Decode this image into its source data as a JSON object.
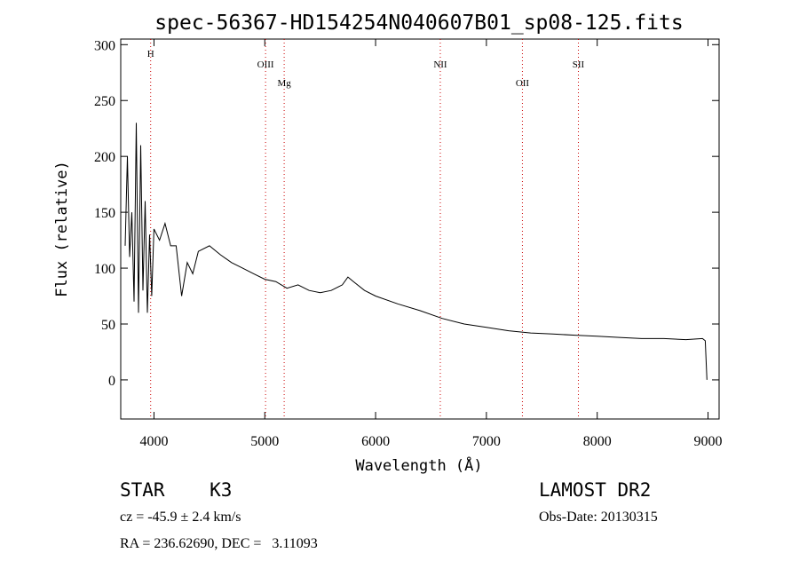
{
  "chart_data": {
    "type": "line",
    "title": "spec-56367-HD154254N040607B01_sp08-125.fits",
    "xlabel": "Wavelength (Å)",
    "ylabel": "Flux (relative)",
    "xlim": [
      3700,
      9100
    ],
    "ylim": [
      -35,
      305
    ],
    "xticks": [
      4000,
      5000,
      6000,
      7000,
      8000,
      9000
    ],
    "yticks": [
      0,
      50,
      100,
      150,
      200,
      250,
      300
    ],
    "series": [
      {
        "x": [
          3740,
          3760,
          3780,
          3800,
          3820,
          3840,
          3860,
          3880,
          3900,
          3920,
          3940,
          3960,
          3980,
          4000,
          4050,
          4100,
          4150,
          4200,
          4250,
          4300,
          4350,
          4400,
          4500,
          4600,
          4700,
          4800,
          4900,
          5000,
          5100,
          5200,
          5300,
          5400,
          5500,
          5600,
          5700,
          5750,
          5800,
          5900,
          6000,
          6200,
          6400,
          6600,
          6800,
          7000,
          7200,
          7400,
          7600,
          7800,
          8000,
          8200,
          8400,
          8600,
          8800,
          8950,
          8975,
          8990
        ],
        "y": [
          120,
          200,
          110,
          150,
          70,
          230,
          60,
          210,
          80,
          160,
          60,
          130,
          75,
          135,
          125,
          140,
          120,
          120,
          75,
          105,
          95,
          115,
          120,
          112,
          105,
          100,
          95,
          90,
          88,
          82,
          85,
          80,
          78,
          80,
          85,
          92,
          88,
          80,
          75,
          68,
          62,
          55,
          50,
          47,
          44,
          42,
          41,
          40,
          39,
          38,
          37,
          37,
          36,
          37,
          35,
          0
        ]
      }
    ],
    "lines": [
      {
        "label": "H",
        "x": 3970
      },
      {
        "label": "OIII",
        "x": 5007
      },
      {
        "label": "Mg",
        "x": 5175
      },
      {
        "label": "NII",
        "x": 6584
      },
      {
        "label": "OII",
        "x": 7325
      },
      {
        "label": "SII",
        "x": 7830
      }
    ],
    "grid": false
  },
  "info": {
    "object_class": "STAR    K3",
    "survey": "LAMOST DR2",
    "cz": "cz = -45.9 ± 2.4 km/s",
    "obs_date": "Obs-Date: 20130315",
    "radec": "RA = 236.62690, DEC =   3.11093"
  },
  "colors": {
    "spectrum": "#000000",
    "line_marker": "#cc0000",
    "axes": "#000000"
  }
}
